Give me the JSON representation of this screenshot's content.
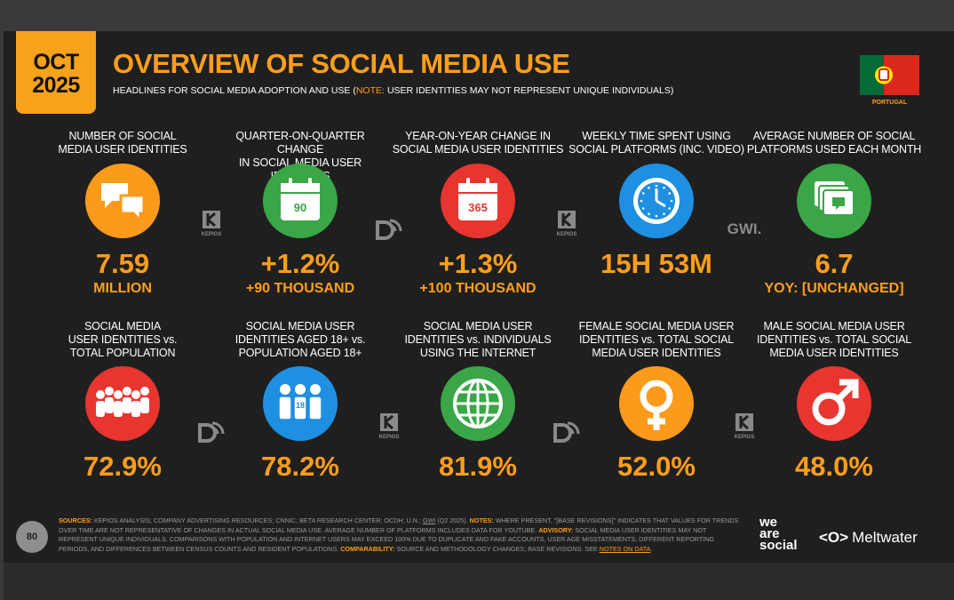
{
  "header": {
    "month": "OCT",
    "year": "2025",
    "title": "OVERVIEW OF SOCIAL MEDIA USE",
    "subtitle_lead": "HEADLINES FOR SOCIAL MEDIA ADOPTION AND USE (",
    "note_label": "NOTE:",
    "note_text": "USER IDENTITIES MAY NOT REPRESENT UNIQUE INDIVIDUALS)",
    "country": "PORTUGAL"
  },
  "stats": [
    {
      "label": [
        "NUMBER OF SOCIAL",
        "MEDIA USER IDENTITIES"
      ],
      "value": "7.59",
      "sublabel": "MILLION"
    },
    {
      "label": [
        "QUARTER-ON-QUARTER CHANGE",
        "IN SOCIAL MEDIA USER IDENTITIES"
      ],
      "icon_text": "90",
      "value": "+1.2%",
      "sublabel": "+90 THOUSAND"
    },
    {
      "label": [
        "YEAR-ON-YEAR CHANGE IN",
        "SOCIAL MEDIA USER IDENTITIES"
      ],
      "icon_text": "365",
      "value": "+1.3%",
      "sublabel": "+100 THOUSAND"
    },
    {
      "label": [
        "WEEKLY TIME SPENT USING",
        "SOCIAL PLATFORMS (INC. VIDEO)"
      ],
      "value": "15H 53M"
    },
    {
      "label": [
        "AVERAGE NUMBER OF SOCIAL",
        "PLATFORMS USED EACH MONTH"
      ],
      "value": "6.7",
      "sublabel": "YOY: [UNCHANGED]"
    },
    {
      "label": [
        "SOCIAL MEDIA",
        "USER IDENTITIES vs.",
        "TOTAL POPULATION"
      ],
      "value": "72.9%"
    },
    {
      "label": [
        "SOCIAL MEDIA USER",
        "IDENTITIES AGED 18+ vs.",
        "POPULATION AGED 18+"
      ],
      "icon_text": "18",
      "value": "78.2%"
    },
    {
      "label": [
        "SOCIAL MEDIA USER",
        "IDENTITIES vs. INDIVIDUALS",
        "USING THE INTERNET"
      ],
      "value": "81.9%"
    },
    {
      "label": [
        "FEMALE SOCIAL MEDIA USER",
        "IDENTITIES vs. TOTAL SOCIAL",
        "MEDIA USER IDENTITIES"
      ],
      "value": "52.0%"
    },
    {
      "label": [
        "MALE SOCIAL MEDIA USER",
        "IDENTITIES vs. TOTAL SOCIAL",
        "MEDIA USER IDENTITIES"
      ],
      "value": "48.0%"
    }
  ],
  "source_logos": [
    "KEPIOS",
    "KEPIOS",
    "GWI.",
    "KEPIOS",
    "KEPIOS"
  ],
  "footer": {
    "page_number": "80",
    "segments": [
      {
        "text": "SOURCES:",
        "kind": "label"
      },
      {
        "text": "KEPIOS ANALYSIS; COMPANY ADVERTISING RESOURCES; CNNIC; BETA RESEARCH CENTER; OCDH; U.N.;",
        "kind": "text"
      },
      {
        "text": "GWI",
        "kind": "underline"
      },
      {
        "text": "(Q2 2025).",
        "kind": "text"
      },
      {
        "text": "NOTES:",
        "kind": "label"
      },
      {
        "text": "WHERE PRESENT, \"[BASE REVISIONS]\" INDICATES THAT VALUES FOR TRENDS OVER TIME ARE NOT REPRESENTATIVE OF CHANGES IN ACTUAL SOCIAL MEDIA USE. AVERAGE NUMBER OF PLATFORMS INCLUDES DATA FOR YOUTUBE.",
        "kind": "text"
      },
      {
        "text": "ADVISORY:",
        "kind": "label"
      },
      {
        "text": "SOCIAL MEDIA USER IDENTITIES MAY NOT REPRESENT UNIQUE INDIVIDUALS. COMPARISONS WITH POPULATION AND INTERNET USERS MAY EXCEED 100% DUE TO DUPLICATE AND FAKE ACCOUNTS, USER AGE MISSTATEMENTS, DIFFERENT REPORTING PERIODS, AND DIFFERENCES BETWEEN CENSUS COUNTS AND RESIDENT POPULATIONS.",
        "kind": "text"
      },
      {
        "text": "COMPARABILITY:",
        "kind": "label"
      },
      {
        "text": "SOURCE AND METHODOLOGY CHANGES; BASE REVISIONS. SEE",
        "kind": "text"
      },
      {
        "text": "NOTES ON DATA",
        "kind": "link"
      },
      {
        "text": ".",
        "kind": "tail"
      }
    ],
    "brand_we_are_social": [
      "we",
      "are",
      "social"
    ],
    "brand_meltwater": "Meltwater"
  }
}
